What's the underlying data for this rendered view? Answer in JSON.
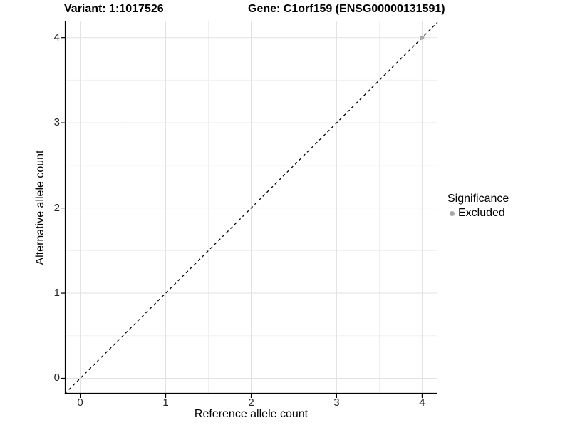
{
  "chart_data": {
    "type": "scatter",
    "title_left": "Variant: 1:1017526",
    "title_right": "Gene: C1orf159 (ENSG00000131591)",
    "xlabel": "Reference allele count",
    "ylabel": "Alternative allele count",
    "xlim": [
      -0.18,
      4.18
    ],
    "ylim": [
      -0.18,
      4.19
    ],
    "x_ticks": [
      0,
      1,
      2,
      3,
      4
    ],
    "y_ticks": [
      0,
      1,
      2,
      3,
      4
    ],
    "x_minor": [
      0.5,
      1.5,
      2.5,
      3.5
    ],
    "y_minor": [
      0.5,
      1.5,
      2.5,
      3.5
    ],
    "grid": "major+minor",
    "reference_line": {
      "type": "abline",
      "slope": 1,
      "intercept": 0,
      "style": "dashed",
      "color": "#000000"
    },
    "series": [
      {
        "name": "Excluded",
        "color": "#a8a8a8",
        "points": [
          {
            "x": 4,
            "y": 4
          }
        ]
      }
    ],
    "legend": {
      "position": "right",
      "title": "Significance",
      "items": [
        {
          "label": "Excluded",
          "color": "#a8a8a8"
        }
      ]
    }
  },
  "colors": {
    "background": "#ffffff",
    "grid_major": "#e2e2e2",
    "grid_minor": "#f0f0f0",
    "axis_line": "#000000",
    "tick_text": "#262626",
    "title_text": "#000000",
    "point": "#a8a8a8"
  }
}
